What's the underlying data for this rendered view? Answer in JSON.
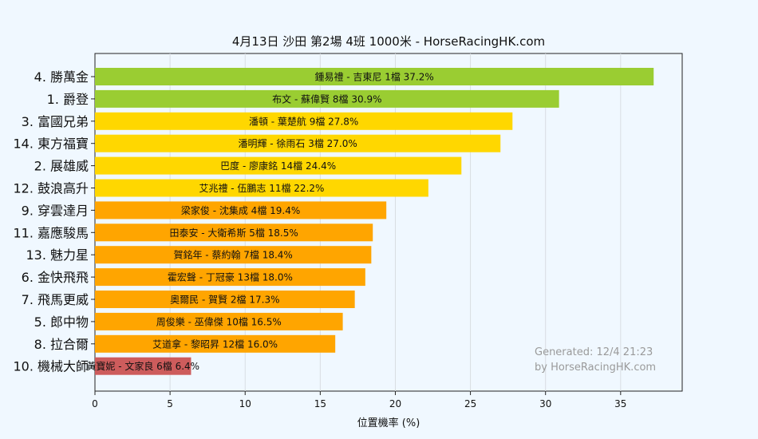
{
  "chart_data": {
    "type": "bar",
    "orientation": "horizontal",
    "title": "4月13日  沙田  第2場  4班  1000米 - HorseRacingHK.com",
    "xlabel": "位置機率 (%)",
    "xlim": [
      0,
      39.1
    ],
    "xticks": [
      0,
      5,
      10,
      15,
      20,
      25,
      30,
      35
    ],
    "grid": "x-only",
    "bars": [
      {
        "category": "4. 勝萬金",
        "label": "鍾易禮 - 吉東尼 1檔  37.2%",
        "value": 37.2,
        "color": "#9acd32"
      },
      {
        "category": "1. 爵登",
        "label": "布文 - 蘇偉賢 8檔  30.9%",
        "value": 30.9,
        "color": "#9acd32"
      },
      {
        "category": "3. 富國兄弟",
        "label": "潘頓 - 葉楚航 9檔  27.8%",
        "value": 27.8,
        "color": "#ffd700"
      },
      {
        "category": "14. 東方福寶",
        "label": "潘明輝 - 徐雨石 3檔  27.0%",
        "value": 27.0,
        "color": "#ffd700"
      },
      {
        "category": "2. 展雄威",
        "label": "巴度 - 廖康銘 14檔  24.4%",
        "value": 24.4,
        "color": "#ffd700"
      },
      {
        "category": "12. 鼓浪高升",
        "label": "艾兆禮 - 伍鵬志 11檔  22.2%",
        "value": 22.2,
        "color": "#ffd700"
      },
      {
        "category": "9. 穿雲達月",
        "label": "梁家俊 - 沈集成 4檔  19.4%",
        "value": 19.4,
        "color": "#ffa500"
      },
      {
        "category": "11. 嘉應駿馬",
        "label": "田泰安 - 大衛希斯 5檔  18.5%",
        "value": 18.5,
        "color": "#ffa500"
      },
      {
        "category": "13. 魅力星",
        "label": "賀銘年 - 蔡約翰 7檔  18.4%",
        "value": 18.4,
        "color": "#ffa500"
      },
      {
        "category": "6. 金快飛飛",
        "label": "霍宏聲 - 丁冠豪 13檔  18.0%",
        "value": 18.0,
        "color": "#ffa500"
      },
      {
        "category": "7. 飛馬更威",
        "label": "奧爾民 - 賀賢 2檔  17.3%",
        "value": 17.3,
        "color": "#ffa500"
      },
      {
        "category": "5. 郎中物",
        "label": "周俊樂 - 巫偉傑 10檔  16.5%",
        "value": 16.5,
        "color": "#ffa500"
      },
      {
        "category": "8. 拉合爾",
        "label": "艾道拿 - 黎昭昇 12檔  16.0%",
        "value": 16.0,
        "color": "#ffa500"
      },
      {
        "category": "10. 機械大師",
        "label": "黃寶妮 - 文家良 6檔  6.4%",
        "value": 6.4,
        "color": "#cd5c5c"
      }
    ],
    "watermark": [
      "Generated: 12/4 21:23",
      "by HorseRacingHK.com"
    ]
  }
}
